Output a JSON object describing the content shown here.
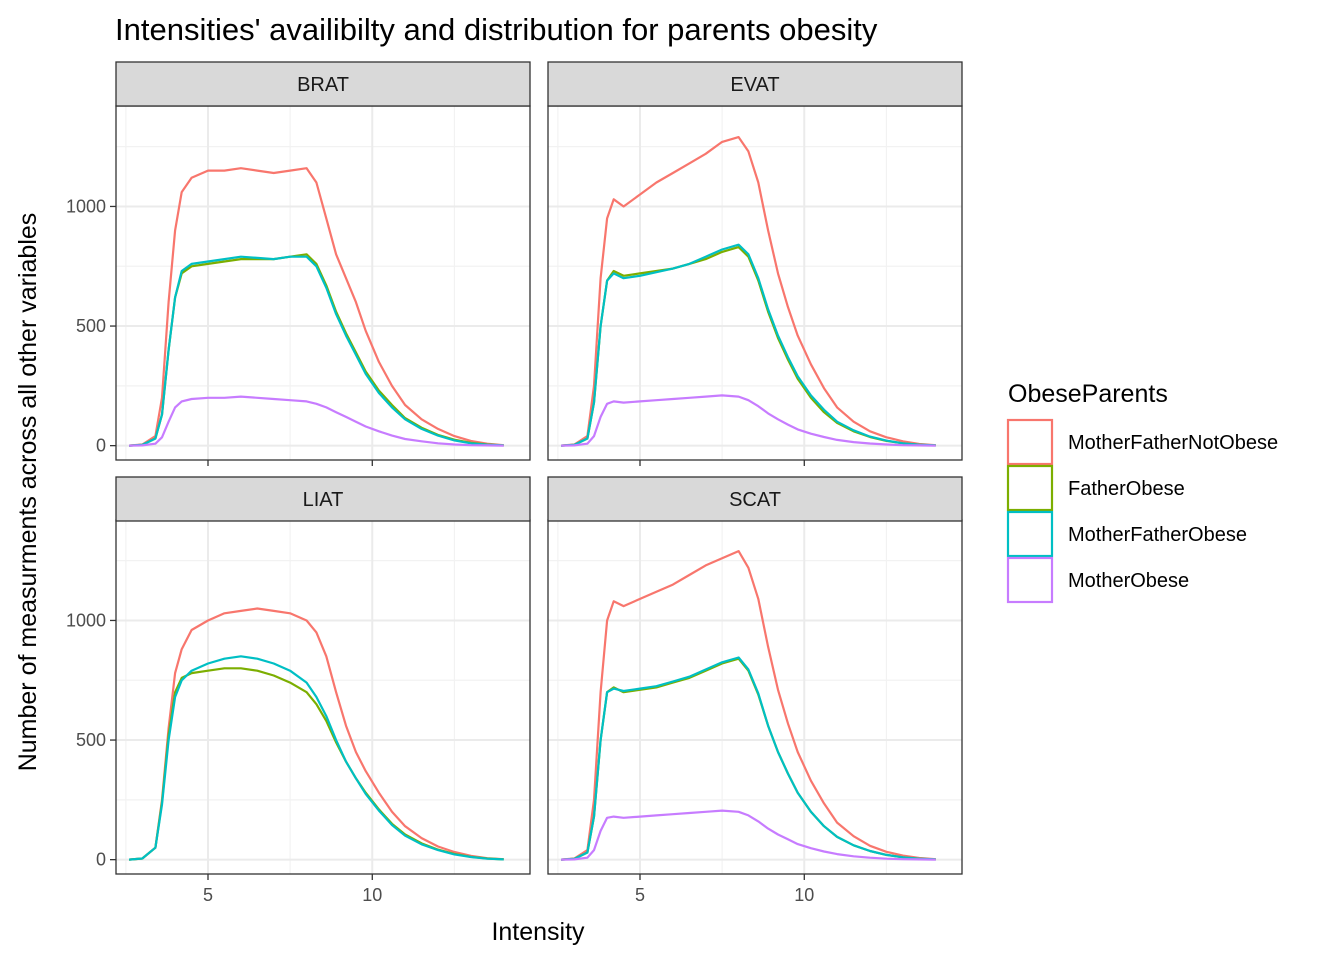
{
  "chart_data": {
    "type": "line",
    "title": "Intensities' availibilty and distribution for parents obesity",
    "xlabel": "Intensity",
    "ylabel": "Number of measurments across all other variables",
    "xlim": [
      2.2,
      14.8
    ],
    "ylim": [
      -60,
      1420
    ],
    "x_ticks": [
      5,
      10
    ],
    "x_tick_labels": [
      "5",
      "10"
    ],
    "y_ticks": [
      0,
      500,
      1000
    ],
    "y_tick_labels": [
      "0",
      "500",
      "1000"
    ],
    "grid": true,
    "legend": {
      "title": "ObeseParents",
      "position": "right",
      "entries": [
        "MotherFatherNotObese",
        "FatherObese",
        "MotherFatherObese",
        "MotherObese"
      ]
    },
    "colors": {
      "MotherFatherNotObese": "#F8766D",
      "FatherObese": "#7CAE00",
      "MotherFatherObese": "#00BFC4",
      "MotherObese": "#C77CFF"
    },
    "x": [
      2.6,
      3.0,
      3.4,
      3.6,
      3.8,
      4.0,
      4.2,
      4.5,
      5.0,
      5.5,
      6.0,
      6.5,
      7.0,
      7.5,
      8.0,
      8.3,
      8.6,
      8.9,
      9.2,
      9.5,
      9.8,
      10.2,
      10.6,
      11.0,
      11.5,
      12.0,
      12.5,
      13.0,
      13.5,
      14.0
    ],
    "facets": [
      {
        "name": "BRAT",
        "series": [
          {
            "name": "MotherFatherNotObese",
            "values": [
              0,
              5,
              40,
              200,
              600,
              900,
              1060,
              1120,
              1150,
              1150,
              1160,
              1150,
              1140,
              1150,
              1160,
              1100,
              950,
              800,
              700,
              600,
              480,
              350,
              250,
              170,
              110,
              70,
              40,
              20,
              8,
              2
            ]
          },
          {
            "name": "FatherObese",
            "values": [
              0,
              3,
              30,
              130,
              400,
              620,
              720,
              750,
              760,
              770,
              780,
              780,
              780,
              790,
              800,
              760,
              670,
              560,
              470,
              390,
              310,
              230,
              170,
              115,
              75,
              45,
              25,
              12,
              5,
              1
            ]
          },
          {
            "name": "MotherFatherObese",
            "values": [
              0,
              3,
              30,
              130,
              400,
              620,
              730,
              760,
              770,
              780,
              790,
              785,
              780,
              790,
              790,
              750,
              660,
              550,
              460,
              380,
              300,
              220,
              160,
              110,
              70,
              42,
              22,
              10,
              4,
              1
            ]
          },
          {
            "name": "MotherObese",
            "values": [
              0,
              1,
              8,
              35,
              100,
              160,
              185,
              195,
              200,
              200,
              205,
              200,
              195,
              190,
              185,
              175,
              160,
              140,
              120,
              100,
              80,
              60,
              42,
              28,
              18,
              10,
              5,
              2,
              1,
              0
            ]
          }
        ]
      },
      {
        "name": "EVAT",
        "series": [
          {
            "name": "MotherFatherNotObese",
            "values": [
              0,
              5,
              40,
              250,
              700,
              950,
              1030,
              1000,
              1050,
              1100,
              1140,
              1180,
              1220,
              1270,
              1290,
              1230,
              1100,
              900,
              720,
              580,
              460,
              340,
              240,
              160,
              100,
              60,
              35,
              18,
              7,
              2
            ]
          },
          {
            "name": "FatherObese",
            "values": [
              0,
              3,
              30,
              180,
              500,
              690,
              730,
              710,
              720,
              730,
              740,
              760,
              780,
              810,
              830,
              790,
              690,
              560,
              450,
              360,
              280,
              200,
              140,
              95,
              60,
              36,
              20,
              10,
              4,
              1
            ]
          },
          {
            "name": "MotherFatherObese",
            "values": [
              0,
              3,
              30,
              180,
              500,
              690,
              720,
              700,
              710,
              725,
              740,
              760,
              790,
              820,
              840,
              800,
              700,
              570,
              460,
              370,
              290,
              210,
              150,
              100,
              64,
              38,
              21,
              10,
              4,
              1
            ]
          },
          {
            "name": "MotherObese",
            "values": [
              0,
              1,
              8,
              40,
              120,
              175,
              185,
              180,
              185,
              190,
              195,
              200,
              205,
              210,
              205,
              190,
              165,
              135,
              110,
              88,
              68,
              50,
              36,
              24,
              15,
              9,
              5,
              2,
              1,
              0
            ]
          }
        ]
      },
      {
        "name": "LIAT",
        "series": [
          {
            "name": "MotherFatherNotObese",
            "values": [
              0,
              5,
              50,
              250,
              550,
              780,
              880,
              960,
              1000,
              1030,
              1040,
              1050,
              1040,
              1030,
              1000,
              950,
              850,
              700,
              560,
              450,
              370,
              280,
              200,
              140,
              90,
              55,
              32,
              16,
              6,
              2
            ]
          },
          {
            "name": "FatherObese",
            "values": [
              0,
              5,
              50,
              240,
              520,
              700,
              760,
              780,
              790,
              800,
              800,
              790,
              770,
              740,
              700,
              650,
              580,
              490,
              410,
              340,
              280,
              210,
              150,
              105,
              68,
              42,
              24,
              12,
              5,
              1
            ]
          },
          {
            "name": "MotherFatherObese",
            "values": [
              0,
              5,
              50,
              230,
              500,
              680,
              750,
              790,
              820,
              840,
              850,
              840,
              820,
              790,
              740,
              680,
              600,
              500,
              410,
              340,
              275,
              205,
              145,
              100,
              64,
              40,
              22,
              11,
              4,
              1
            ]
          }
        ]
      },
      {
        "name": "SCAT",
        "series": [
          {
            "name": "MotherFatherNotObese",
            "values": [
              0,
              5,
              40,
              250,
              700,
              1000,
              1080,
              1060,
              1090,
              1120,
              1150,
              1190,
              1230,
              1260,
              1290,
              1220,
              1090,
              890,
              710,
              570,
              450,
              330,
              235,
              155,
              98,
              58,
              33,
              17,
              7,
              2
            ]
          },
          {
            "name": "FatherObese",
            "values": [
              0,
              3,
              30,
              180,
              500,
              700,
              720,
              700,
              710,
              720,
              740,
              760,
              790,
              820,
              840,
              790,
              690,
              560,
              450,
              360,
              280,
              200,
              140,
              95,
              60,
              36,
              20,
              10,
              4,
              1
            ]
          },
          {
            "name": "MotherFatherObese",
            "values": [
              0,
              3,
              30,
              180,
              500,
              700,
              715,
              705,
              715,
              725,
              745,
              765,
              795,
              825,
              845,
              795,
              695,
              560,
              450,
              360,
              280,
              200,
              140,
              95,
              60,
              36,
              20,
              10,
              4,
              1
            ]
          },
          {
            "name": "MotherObese",
            "values": [
              0,
              1,
              8,
              40,
              120,
              175,
              180,
              175,
              180,
              185,
              190,
              195,
              200,
              205,
              200,
              185,
              160,
              130,
              105,
              85,
              65,
              48,
              34,
              23,
              14,
              8,
              4,
              2,
              1,
              0
            ]
          }
        ]
      }
    ]
  }
}
